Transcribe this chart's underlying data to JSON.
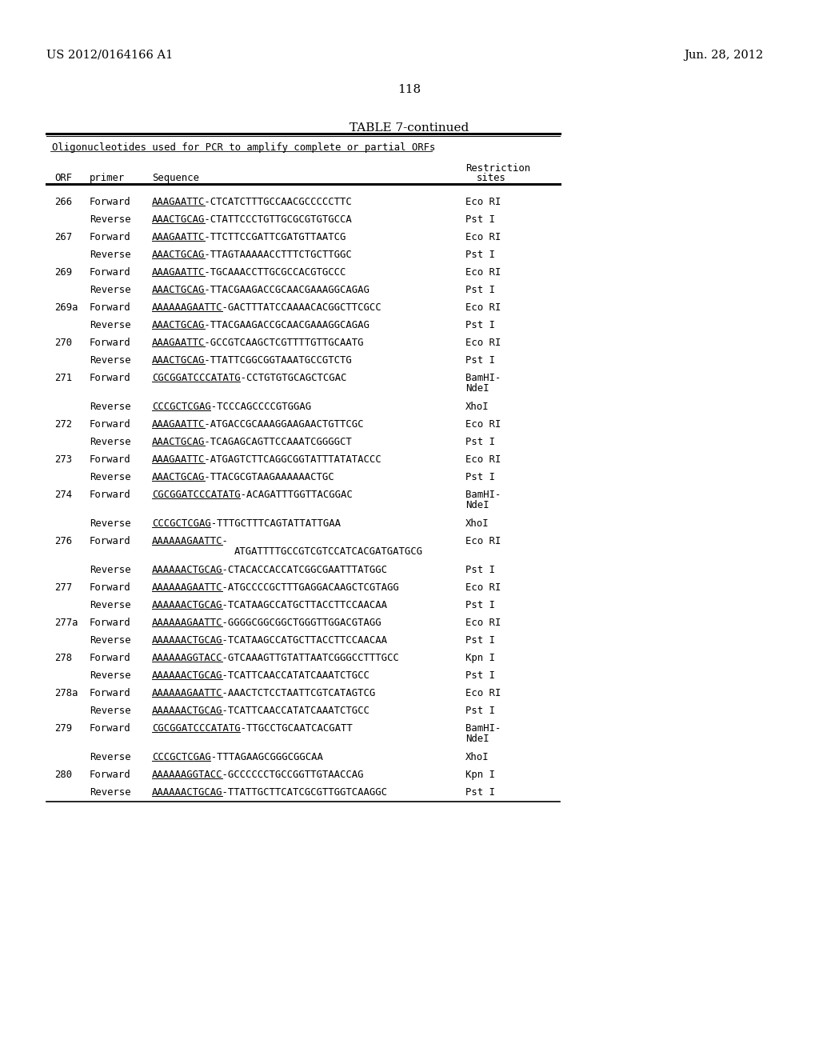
{
  "header_left": "US 2012/0164166 A1",
  "header_right": "Jun. 28, 2012",
  "page_number": "118",
  "table_title": "TABLE 7-continued",
  "table_subtitle": "Oligonucleotides used for PCR to amplify complete or partial ORFs",
  "background_color": "#ffffff",
  "text_color": "#000000",
  "rows": [
    {
      "orf": "266",
      "primer": "Forward",
      "seq": "AAAGAATTC-CTCATCTTTGCCAACGCCCCCTTC",
      "rest": "Eco RI",
      "ul_prefix": "AAAGAATTC"
    },
    {
      "orf": "",
      "primer": "Reverse",
      "seq": "AAACTGCAG-CTATTCCCTGTTGCGCGTGTGCCA",
      "rest": "Pst I",
      "ul_prefix": "AAACTGCAG"
    },
    {
      "orf": "267",
      "primer": "Forward",
      "seq": "AAAGAATTC-TTCTTCCGATTCGATGTTAATCG",
      "rest": "Eco RI",
      "ul_prefix": "AAAGAATTC"
    },
    {
      "orf": "",
      "primer": "Reverse",
      "seq": "AAACTGCAG-TTAGTAAAAACCTTTCTGCTTGGC",
      "rest": "Pst I",
      "ul_prefix": "AAACTGCAG"
    },
    {
      "orf": "269",
      "primer": "Forward",
      "seq": "AAAGAATTC-TGCAAACCTTGCGCCACGTGCCC",
      "rest": "Eco RI",
      "ul_prefix": "AAAGAATTC"
    },
    {
      "orf": "",
      "primer": "Reverse",
      "seq": "AAACTGCAG-TTACGAAGACCGCAACGAAAGGCAGAG",
      "rest": "Pst I",
      "ul_prefix": "AAACTGCAG"
    },
    {
      "orf": "269a",
      "primer": "Forward",
      "seq": "AAAAAAGAATTC-GACTTTATCCAAAACACGGCTTCGCC",
      "rest": "Eco RI",
      "ul_prefix": "AAAAAAGAATTC"
    },
    {
      "orf": "",
      "primer": "Reverse",
      "seq": "AAACTGCAG-TTACGAAGACCGCAACGAAAGGCAGAG",
      "rest": "Pst I",
      "ul_prefix": "AAACTGCAG"
    },
    {
      "orf": "270",
      "primer": "Forward",
      "seq": "AAAGAATTC-GCCGTCAAGCTCGTTTTGTTGCAATG",
      "rest": "Eco RI",
      "ul_prefix": "AAAGAATTC"
    },
    {
      "orf": "",
      "primer": "Reverse",
      "seq": "AAACTGCAG-TTATTCGGCGGTAAATGCCGTCTG",
      "rest": "Pst I",
      "ul_prefix": "AAACTGCAG"
    },
    {
      "orf": "271",
      "primer": "Forward",
      "seq": "CGCGGATCCCATATG-CCTGTGTGCAGCTCGAC",
      "rest": "BamHI-\nNdeI",
      "ul_prefix": "CGCGGATCCCATATG",
      "extra_rest": true
    },
    {
      "orf": "",
      "primer": "Reverse",
      "seq": "CCCGCTCGAG-TCCCAGCCCCGTGGAG",
      "rest": "XhoI",
      "ul_prefix": "CCCGCTCGAG"
    },
    {
      "orf": "272",
      "primer": "Forward",
      "seq": "AAAGAATTC-ATGACCGCAAAGGAAGAACTGTTCGC",
      "rest": "Eco RI",
      "ul_prefix": "AAAGAATTC"
    },
    {
      "orf": "",
      "primer": "Reverse",
      "seq": "AAACTGCAG-TCAGAGCAGTTCCAAATCGGGGCT",
      "rest": "Pst I",
      "ul_prefix": "AAACTGCAG"
    },
    {
      "orf": "273",
      "primer": "Forward",
      "seq": "AAAGAATTC-ATGAGTCTTCAGGCGGTATTTATATACCC",
      "rest": "Eco RI",
      "ul_prefix": "AAAGAATTC"
    },
    {
      "orf": "",
      "primer": "Reverse",
      "seq": "AAACTGCAG-TTACGCGTAAGAAAAAACTGC",
      "rest": "Pst I",
      "ul_prefix": "AAACTGCAG"
    },
    {
      "orf": "274",
      "primer": "Forward",
      "seq": "CGCGGATCCCATATG-ACAGATTTGGTTACGGAC",
      "rest": "BamHI-\nNdeI",
      "ul_prefix": "CGCGGATCCCATATG",
      "extra_rest": true
    },
    {
      "orf": "",
      "primer": "Reverse",
      "seq": "CCCGCTCGAG-TTTGCTTTCAGTATTATTGAA",
      "rest": "XhoI",
      "ul_prefix": "CCCGCTCGAG"
    },
    {
      "orf": "276",
      "primer": "Forward",
      "seq": "AAAAAAGAATTC-",
      "seq2": "ATGATTTTGCCGTCGTCCATCACGATGATGCG",
      "rest": "Eco RI",
      "ul_prefix": "AAAAAAGAATTC",
      "wrap": true
    },
    {
      "orf": "",
      "primer": "Reverse",
      "seq": "AAAAAACTGCAG-CTACACCACCATCGGCGAATTTATGGC",
      "rest": "Pst I",
      "ul_prefix": "AAAAAACTGCAG"
    },
    {
      "orf": "277",
      "primer": "Forward",
      "seq": "AAAAAAGAATTC-ATGCCCCGCTTTGAGGACAAGCTCGTAGG",
      "rest": "Eco RI",
      "ul_prefix": "AAAAAAGAATTC"
    },
    {
      "orf": "",
      "primer": "Reverse",
      "seq": "AAAAAACTGCAG-TCATAAGCCATGCTTACCTTCCAACAA",
      "rest": "Pst I",
      "ul_prefix": "AAAAAACTGCAG"
    },
    {
      "orf": "277a",
      "primer": "Forward",
      "seq": "AAAAAAGAATTC-GGGGCGGCGGCTGGGTTGGACGTAGG",
      "rest": "Eco RI",
      "ul_prefix": "AAAAAAGAATTC"
    },
    {
      "orf": "",
      "primer": "Reverse",
      "seq": "AAAAAACTGCAG-TCATAAGCCATGCTTACCTTCCAACAA",
      "rest": "Pst I",
      "ul_prefix": "AAAAAACTGCAG"
    },
    {
      "orf": "278",
      "primer": "Forward",
      "seq": "AAAAAAGGTACC-GTCAAAGTTGTATTAATCGGGCCTTTGCC",
      "rest": "Kpn I",
      "ul_prefix": "AAAAAAGGTACC"
    },
    {
      "orf": "",
      "primer": "Reverse",
      "seq": "AAAAAACTGCAG-TCATTCAACCATATCAAATCTGCC",
      "rest": "Pst I",
      "ul_prefix": "AAAAAACTGCAG"
    },
    {
      "orf": "278a",
      "primer": "Forward",
      "seq": "AAAAAAGAATTC-AAACTCTCCTAATTCGTCATAGTCG",
      "rest": "Eco RI",
      "ul_prefix": "AAAAAAGAATTC"
    },
    {
      "orf": "",
      "primer": "Reverse",
      "seq": "AAAAAACTGCAG-TCATTCAACCATATCAAATCTGCC",
      "rest": "Pst I",
      "ul_prefix": "AAAAAACTGCAG"
    },
    {
      "orf": "279",
      "primer": "Forward",
      "seq": "CGCGGATCCCATATG-TTGCCTGCAATCACGATT",
      "rest": "BamHI-\nNdeI",
      "ul_prefix": "CGCGGATCCCATATG",
      "extra_rest": true
    },
    {
      "orf": "",
      "primer": "Reverse",
      "seq": "CCCGCTCGAG-TTTAGAAGCGGGCGGCAA",
      "rest": "XhoI",
      "ul_prefix": "CCCGCTCGAG"
    },
    {
      "orf": "280",
      "primer": "Forward",
      "seq": "AAAAAAGGTACC-GCCCCCCTGCCGGTTGTAACCAG",
      "rest": "Kpn I",
      "ul_prefix": "AAAAAAGGTACC"
    },
    {
      "orf": "",
      "primer": "Reverse",
      "seq": "AAAAAACTGCAG-TTATTGCTTCATCGCGTTGGTCAAGGC",
      "rest": "Pst I",
      "ul_prefix": "AAAAAACTGCAG"
    }
  ]
}
